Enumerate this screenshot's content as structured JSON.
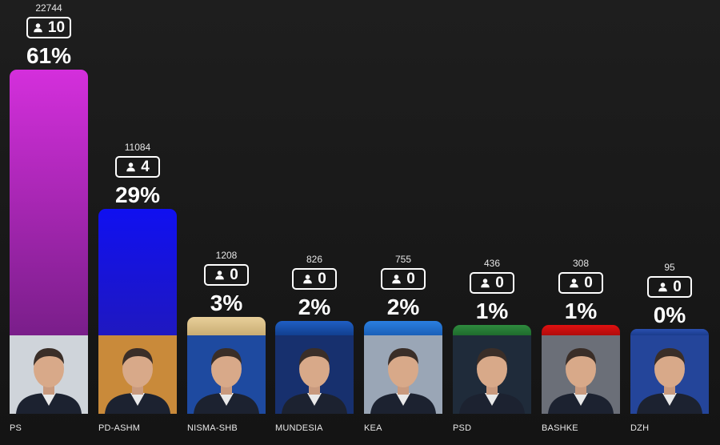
{
  "chart_data": {
    "type": "bar",
    "categories": [
      "PS",
      "PD-ASHM",
      "NISMA-SHB",
      "MUNDESIA",
      "KEA",
      "PSD",
      "BASHKE",
      "DZH"
    ],
    "series": [
      {
        "values": [
          61,
          29,
          3,
          2,
          2,
          1,
          1,
          0
        ]
      }
    ],
    "votes": [
      "22744",
      "11084",
      "1208",
      "826",
      "755",
      "436",
      "308",
      "95"
    ],
    "seats": [
      "10",
      "4",
      "0",
      "0",
      "0",
      "0",
      "0",
      "0"
    ],
    "percent_labels": [
      "61%",
      "29%",
      "3%",
      "2%",
      "2%",
      "1%",
      "1%",
      "0%"
    ],
    "ylim": [
      0,
      61
    ],
    "grid": false,
    "legend": "none",
    "colors": [
      [
        "#d42fdc",
        "#7a1e8a"
      ],
      [
        "#1010f0",
        "#1f18c0"
      ],
      [
        "#e8cf9a",
        "#c9ad73"
      ],
      [
        "#1f5fc4",
        "#123f8f"
      ],
      [
        "#2a7fe0",
        "#1a5fb8"
      ],
      [
        "#2e8b3e",
        "#1f6b2d"
      ],
      [
        "#e01010",
        "#b00c0c"
      ],
      [
        "#2a4fb0",
        "#1a3c8c"
      ]
    ],
    "photo_bg": [
      "#cfd4da",
      "#c98a3a",
      "#1e4aa0",
      "#17306e",
      "#9aa6b6",
      "#1f2b3a",
      "#6b6f78",
      "#24459a"
    ]
  },
  "icons": {
    "seat": "person-icon"
  }
}
